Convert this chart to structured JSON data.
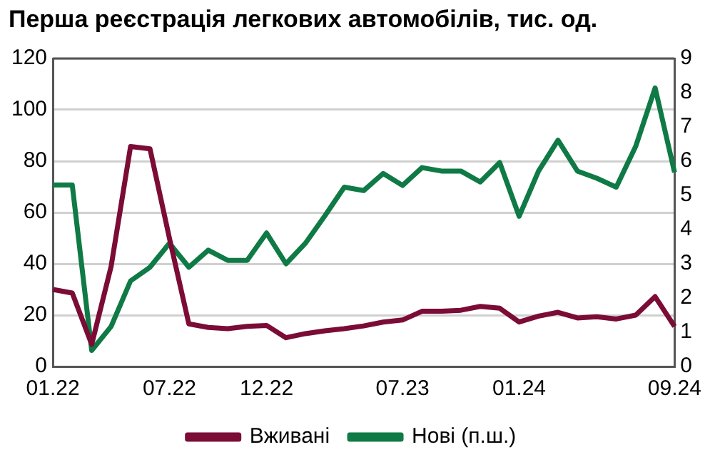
{
  "chart_data": {
    "type": "line",
    "title": "Перша реєстрація легкових автомобілів, тис. од.",
    "categories": [
      "01.22",
      null,
      null,
      null,
      null,
      null,
      "07.22",
      null,
      null,
      null,
      null,
      "12.22",
      null,
      null,
      null,
      null,
      null,
      null,
      "07.23",
      null,
      null,
      null,
      null,
      null,
      "01.24",
      null,
      null,
      null,
      null,
      null,
      null,
      null,
      "09.24"
    ],
    "series": [
      {
        "name": "Вживані",
        "color": "#7b0c36",
        "values": [
          30,
          28.6,
          8.6,
          39,
          85.7,
          84.8,
          50,
          16.6,
          15.2,
          14.7,
          15.6,
          16,
          11.2,
          12.8,
          13.9,
          14.7,
          15.8,
          17.3,
          18.1,
          21.5,
          21.5,
          21.9,
          23.4,
          22.7,
          17.3,
          19.6,
          21.1,
          18.9,
          19.4,
          18.5,
          20,
          27.2,
          15.6
        ]
      },
      {
        "name": "Нові (п.ш.)",
        "color": "#0f7a45",
        "axis": "y2",
        "values": [
          5.3,
          5.3,
          0.47,
          1.17,
          2.5,
          2.9,
          3.6,
          2.9,
          3.4,
          3.1,
          3.1,
          3.9,
          3.0,
          3.6,
          4.4,
          5.24,
          5.14,
          5.64,
          5.29,
          5.81,
          5.71,
          5.71,
          5.39,
          5.96,
          4.39,
          5.71,
          6.61,
          5.71,
          5.5,
          5.24,
          6.43,
          8.14,
          5.67
        ]
      }
    ],
    "ylim": [
      0,
      120
    ],
    "yticks": [
      0,
      20,
      40,
      60,
      80,
      100,
      120
    ],
    "y2lim": [
      0,
      9
    ],
    "y2ticks": [
      0,
      1,
      2,
      3,
      4,
      5,
      6,
      7,
      8,
      9
    ],
    "grid": "y",
    "legend": "bottom",
    "marker": "none",
    "line_style": "solid"
  }
}
